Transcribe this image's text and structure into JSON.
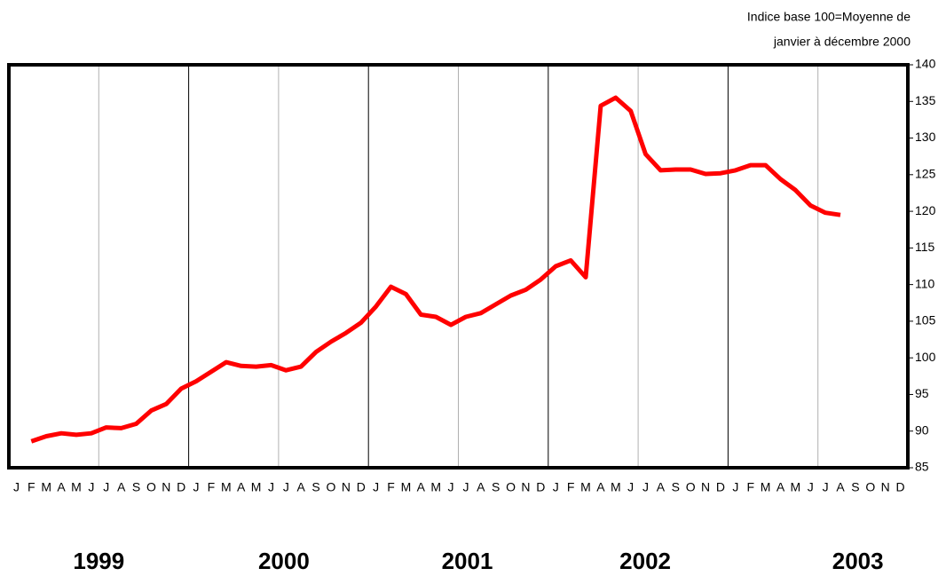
{
  "chart_data": {
    "type": "line",
    "axis_label": [
      "Indice base 100=Moyenne de",
      "janvier à décembre 2000"
    ],
    "categories": [
      "J",
      "F",
      "M",
      "A",
      "M",
      "J",
      "J",
      "A",
      "S",
      "O",
      "N",
      "D",
      "J",
      "F",
      "M",
      "A",
      "M",
      "J",
      "J",
      "A",
      "S",
      "O",
      "N",
      "D",
      "J",
      "F",
      "M",
      "A",
      "M",
      "J",
      "J",
      "A",
      "S",
      "O",
      "N",
      "D",
      "J",
      "F",
      "M",
      "A",
      "M",
      "J",
      "J",
      "A",
      "S",
      "O",
      "N",
      "D",
      "J",
      "F",
      "M",
      "A",
      "M",
      "J",
      "J",
      "A",
      "S",
      "O",
      "N",
      "D"
    ],
    "years": [
      "1999",
      "2000",
      "2001",
      "2002",
      "2003"
    ],
    "series": [
      {
        "color": "#ff0000",
        "values": [
          null,
          88.6,
          89.3,
          89.7,
          89.5,
          89.7,
          90.5,
          90.4,
          91.0,
          92.8,
          93.7,
          95.8,
          96.8,
          98.1,
          99.4,
          98.9,
          98.8,
          99.0,
          98.3,
          98.8,
          100.8,
          102.2,
          103.4,
          104.8,
          107.0,
          109.7,
          108.7,
          105.9,
          105.6,
          104.5,
          105.6,
          106.1,
          107.3,
          108.5,
          109.3,
          110.7,
          112.5,
          113.3,
          111.0,
          134.4,
          135.5,
          133.7,
          127.8,
          125.6,
          125.7,
          125.7,
          125.1,
          125.2,
          125.6,
          126.3,
          126.3,
          124.4,
          122.9,
          120.8,
          119.8,
          119.5,
          null,
          null,
          null,
          null
        ]
      }
    ],
    "ylim": [
      85,
      140
    ],
    "yticks": [
      85,
      90,
      95,
      100,
      105,
      110,
      115,
      120,
      125,
      130,
      135,
      140
    ],
    "y_axis_side": "right"
  }
}
